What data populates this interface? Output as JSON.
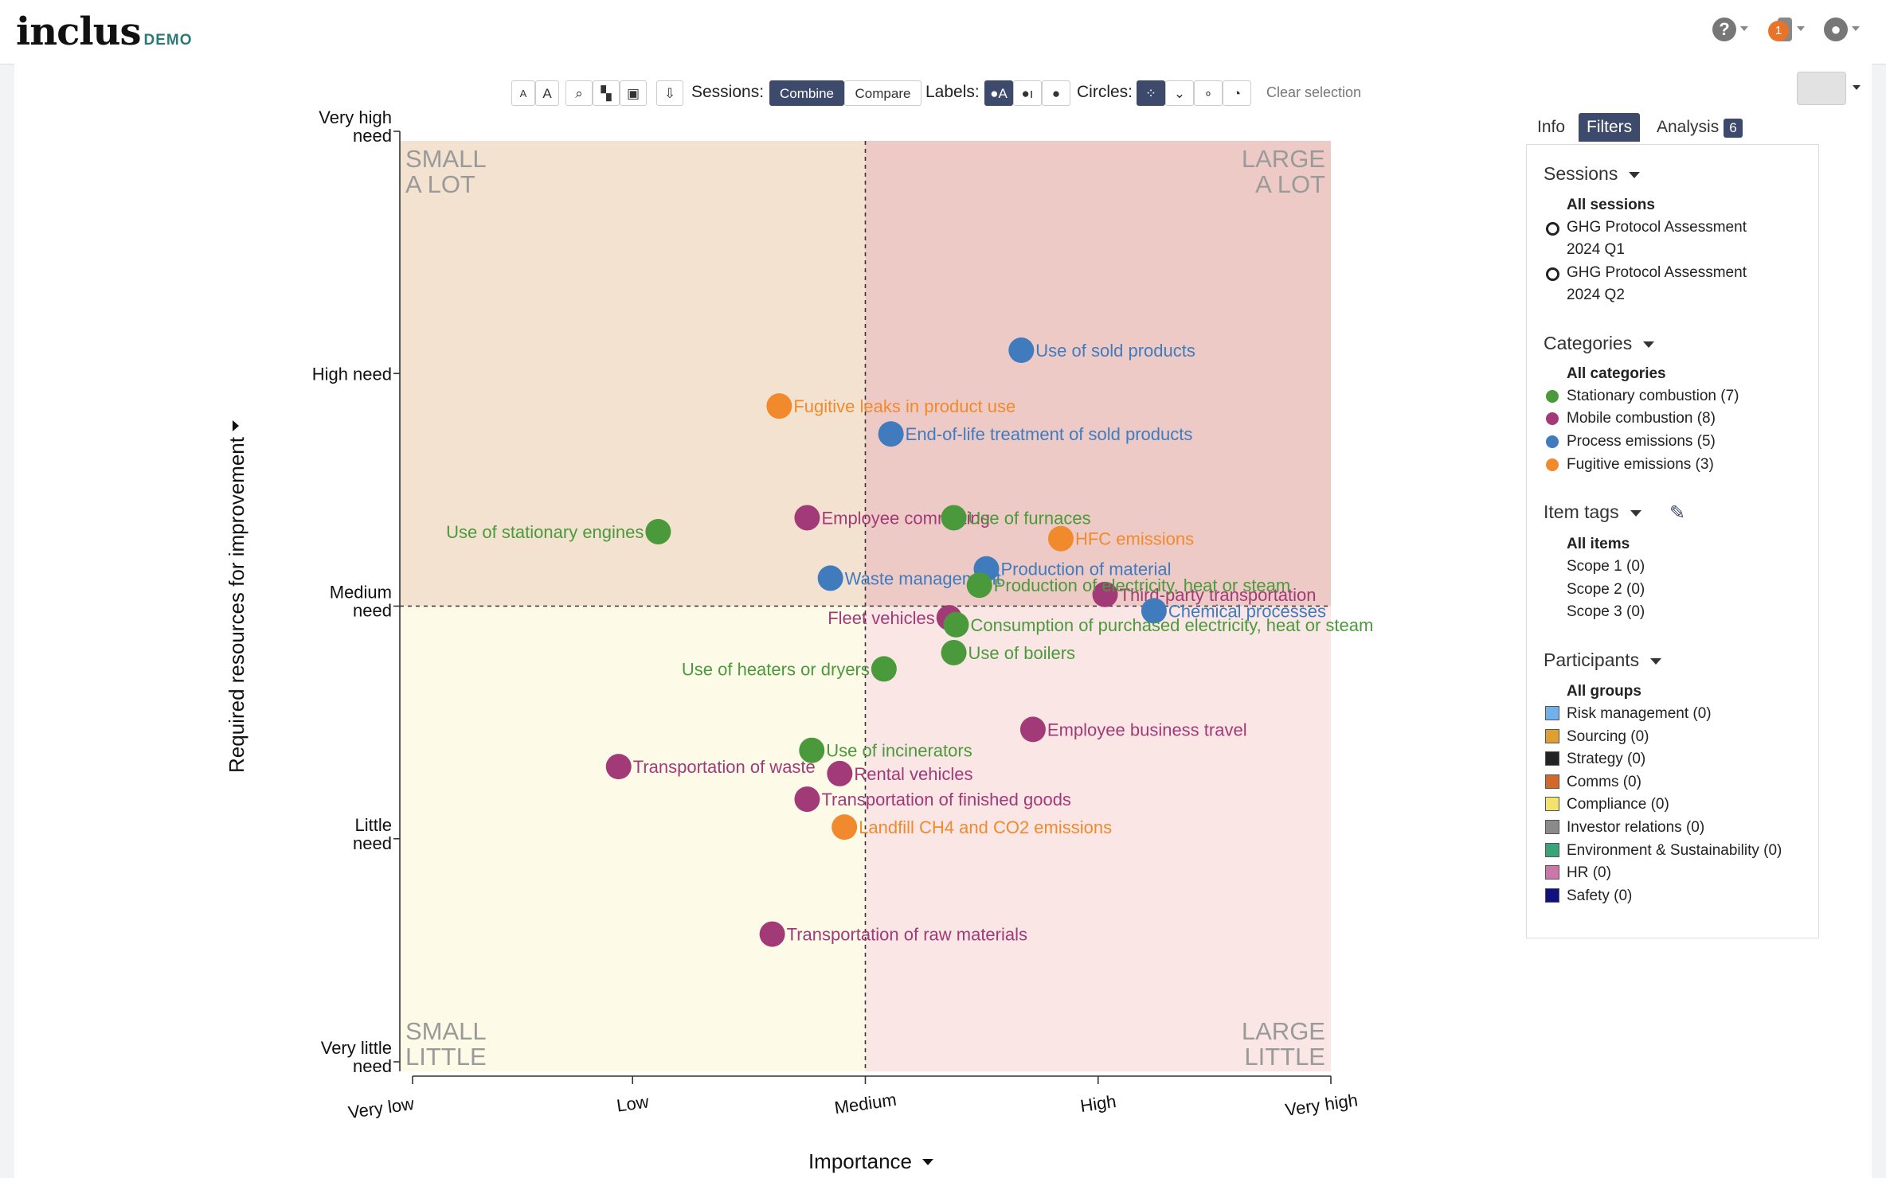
{
  "app": {
    "logo": "inclus",
    "logo_tag": "DEMO",
    "notification_count": "1"
  },
  "toolbar": {
    "text_small": "A",
    "text_large": "A",
    "sessions_label": "Sessions:",
    "combine": "Combine",
    "compare": "Compare",
    "labels_label": "Labels:",
    "circles_label": "Circles:",
    "clear_selection": "Clear selection"
  },
  "tabs": [
    {
      "label": "Info"
    },
    {
      "label": "Filters"
    },
    {
      "label": "Analysis",
      "badge": "6"
    }
  ],
  "sidebar": {
    "sessions": {
      "title": "Sessions",
      "all": "All sessions",
      "items": [
        {
          "line1": "GHG Protocol Assessment",
          "line2": "2024 Q1"
        },
        {
          "line1": "GHG Protocol Assessment",
          "line2": "2024 Q2"
        }
      ]
    },
    "categories": {
      "title": "Categories",
      "all": "All categories",
      "items": [
        {
          "label": "Stationary combustion (7)",
          "color": "#4a9a3b"
        },
        {
          "label": "Mobile combustion (8)",
          "color": "#a33a78"
        },
        {
          "label": "Process emissions (5)",
          "color": "#3f7bbd"
        },
        {
          "label": "Fugitive emissions (3)",
          "color": "#f08a2c"
        }
      ]
    },
    "tags": {
      "title": "Item tags",
      "all": "All items",
      "items": [
        "Scope 1 (0)",
        "Scope 2 (0)",
        "Scope 3 (0)"
      ]
    },
    "participants": {
      "title": "Participants",
      "all": "All groups",
      "items": [
        {
          "label": "Risk management (0)",
          "color": "#6fb1e8"
        },
        {
          "label": "Sourcing (0)",
          "color": "#e0a030"
        },
        {
          "label": "Strategy (0)",
          "color": "#222222"
        },
        {
          "label": "Comms (0)",
          "color": "#d2692b"
        },
        {
          "label": "Compliance (0)",
          "color": "#f3e36a"
        },
        {
          "label": "Investor relations (0)",
          "color": "#8a8a8a"
        },
        {
          "label": "Environment & Sustainability (0)",
          "color": "#3aa37a"
        },
        {
          "label": "HR (0)",
          "color": "#c978a8"
        },
        {
          "label": "Safety (0)",
          "color": "#101080"
        }
      ]
    }
  },
  "chart_data": {
    "type": "scatter",
    "xlabel": "Importance",
    "ylabel": "Required resources for improvement",
    "xlim": [
      0,
      4
    ],
    "ylim": [
      0,
      4
    ],
    "x_ticks": [
      "Very low",
      "Low",
      "Medium",
      "High",
      "Very high"
    ],
    "y_ticks": [
      "Very little need",
      "Little need",
      "Medium need",
      "High need",
      "Very high need"
    ],
    "quadrants": {
      "top_left": "SMALL A LOT",
      "top_right": "LARGE A LOT",
      "bottom_left": "SMALL LITTLE",
      "bottom_right": "LARGE LITTLE"
    },
    "category_colors": {
      "stationary": "#4a9a3b",
      "mobile": "#a33a78",
      "process": "#3f7bbd",
      "fugitive": "#f08a2c"
    },
    "points": [
      {
        "label": "Use of sold products",
        "category": "process",
        "x": 2.67,
        "y": 3.1
      },
      {
        "label": "Fugitive leaks in product use",
        "category": "fugitive",
        "x": 1.63,
        "y": 2.86
      },
      {
        "label": "End-of-life treatment of sold products",
        "category": "process",
        "x": 2.11,
        "y": 2.74
      },
      {
        "label": "Use of stationary engines",
        "category": "stationary",
        "x": 1.11,
        "y": 2.32,
        "label_side": "left"
      },
      {
        "label": "Employee commuting",
        "category": "mobile",
        "x": 1.75,
        "y": 2.38
      },
      {
        "label": "Use of furnaces",
        "category": "stationary",
        "x": 2.38,
        "y": 2.38
      },
      {
        "label": "HFC emissions",
        "category": "fugitive",
        "x": 2.84,
        "y": 2.29
      },
      {
        "label": "Production of material",
        "category": "process",
        "x": 2.52,
        "y": 2.16
      },
      {
        "label": "Waste management",
        "category": "process",
        "x": 1.85,
        "y": 2.12
      },
      {
        "label": "Third-party transportation",
        "category": "mobile",
        "x": 3.03,
        "y": 2.05
      },
      {
        "label": "Production of electricity, heat or steam",
        "category": "stationary",
        "x": 2.49,
        "y": 2.09
      },
      {
        "label": "Chemical processes",
        "category": "process",
        "x": 3.24,
        "y": 1.98
      },
      {
        "label": "Fleet vehicles",
        "category": "mobile",
        "x": 2.36,
        "y": 1.95,
        "label_side": "left"
      },
      {
        "label": "Consumption of purchased electricity, heat or steam",
        "category": "stationary",
        "x": 2.39,
        "y": 1.92
      },
      {
        "label": "Use of boilers",
        "category": "stationary",
        "x": 2.38,
        "y": 1.8
      },
      {
        "label": "Use of heaters or dryers",
        "category": "stationary",
        "x": 2.08,
        "y": 1.73,
        "label_side": "left"
      },
      {
        "label": "Employee business travel",
        "category": "mobile",
        "x": 2.72,
        "y": 1.47
      },
      {
        "label": "Use of incinerators",
        "category": "stationary",
        "x": 1.77,
        "y": 1.38
      },
      {
        "label": "Transportation of waste",
        "category": "mobile",
        "x": 0.94,
        "y": 1.31
      },
      {
        "label": "Rental vehicles",
        "category": "mobile",
        "x": 1.89,
        "y": 1.28
      },
      {
        "label": "Transportation of finished goods",
        "category": "mobile",
        "x": 1.75,
        "y": 1.17
      },
      {
        "label": "Landfill CH4 and CO2 emissions",
        "category": "fugitive",
        "x": 1.91,
        "y": 1.05
      },
      {
        "label": "Transportation of raw materials",
        "category": "mobile",
        "x": 1.6,
        "y": 0.59
      }
    ]
  }
}
